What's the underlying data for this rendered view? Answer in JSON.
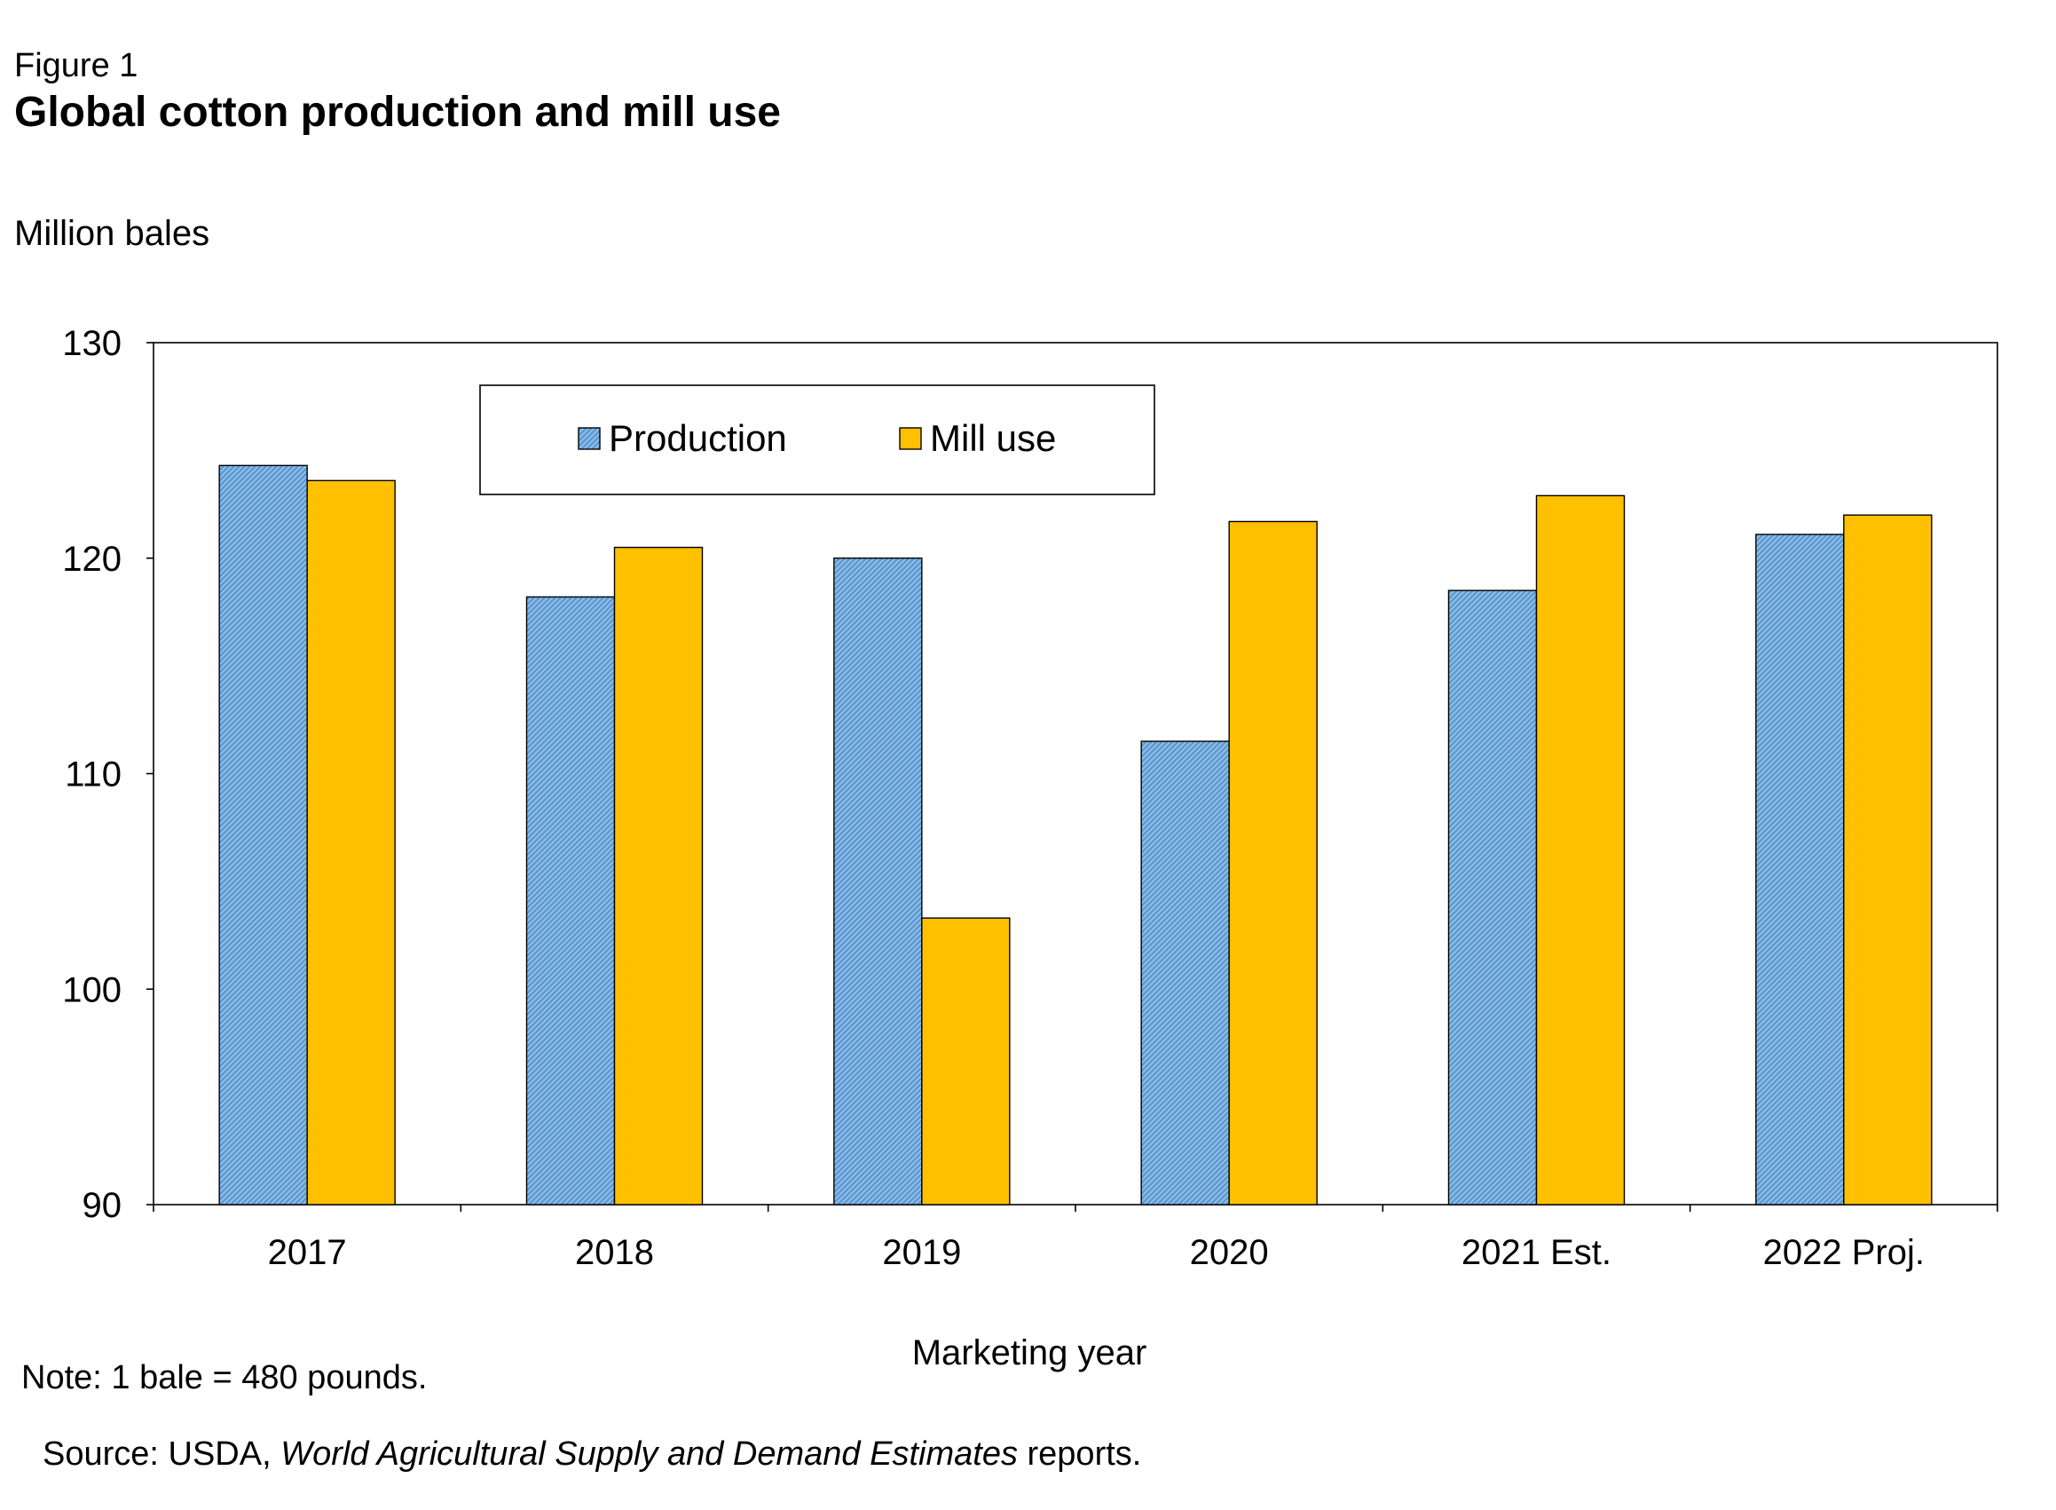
{
  "figure": {
    "label": "Figure 1",
    "title": "Global cotton production and mill use",
    "note": "Note: 1 bale = 480 pounds.",
    "source_prefix": "Source: USDA, ",
    "source_italic": "World Agricultural Supply and Demand Estimates",
    "source_suffix": " reports."
  },
  "colors": {
    "production": "#5b9bd5",
    "mill_use": "#ffc000",
    "axis": "#000000"
  },
  "chart_data": {
    "type": "bar",
    "title": "Global cotton production and mill use",
    "xlabel": "Marketing year",
    "ylabel": "Million bales",
    "ylim": [
      90,
      130
    ],
    "yticks": [
      90,
      100,
      110,
      120,
      130
    ],
    "grid": false,
    "legend": "top-left",
    "categories": [
      "2017",
      "2018",
      "2019",
      "2020",
      "2021 Est.",
      "2022 Proj."
    ],
    "series": [
      {
        "name": "Production",
        "values": [
          124.3,
          118.2,
          120.0,
          111.5,
          118.5,
          121.1
        ]
      },
      {
        "name": "Mill use",
        "values": [
          123.6,
          120.5,
          103.3,
          121.7,
          122.9,
          122.0
        ]
      }
    ]
  }
}
